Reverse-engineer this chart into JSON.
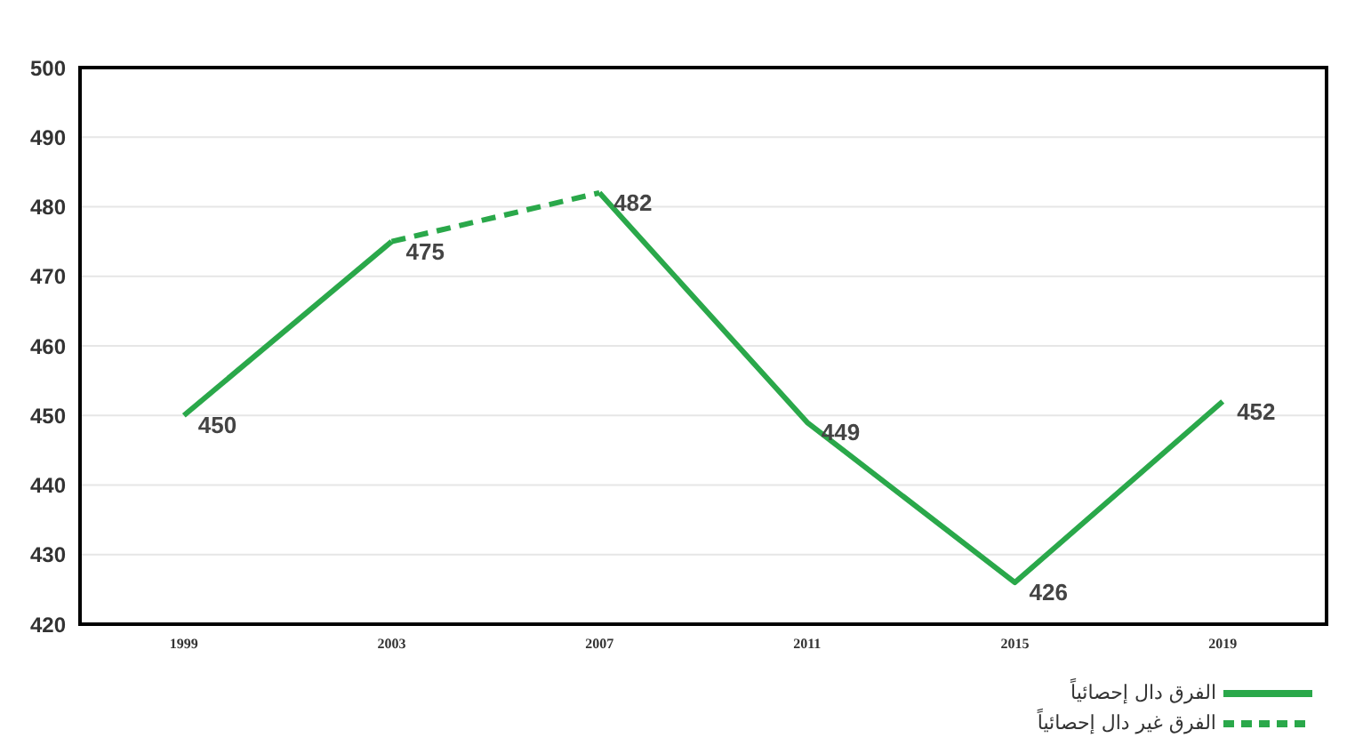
{
  "chart_data": {
    "type": "line",
    "categories": [
      "1999",
      "2003",
      "2007",
      "2011",
      "2015",
      "2019"
    ],
    "series": [
      {
        "name": "الفرق دال إحصائياً",
        "color": "#2aa84a",
        "line_style": "solid",
        "values": [
          450,
          475,
          null,
          null,
          null,
          null
        ],
        "value_labels": [
          "450",
          "475",
          null,
          null,
          null,
          null
        ]
      },
      {
        "name": "الفرق غير دال إحصائياً",
        "color": "#2aa84a",
        "line_style": "dashed",
        "values": [
          null,
          475,
          482,
          null,
          null,
          null
        ],
        "value_labels": [
          null,
          null,
          null,
          null,
          null,
          null
        ]
      },
      {
        "color": "#2aa84a",
        "line_style": "solid",
        "values": [
          null,
          null,
          482,
          449,
          426,
          452
        ],
        "value_labels": [
          null,
          null,
          "482",
          "449",
          "426",
          "452"
        ]
      }
    ],
    "ylim": [
      420,
      500
    ],
    "yticks": [
      420,
      430,
      440,
      450,
      460,
      470,
      480,
      490,
      500
    ],
    "grid": "y",
    "legend": "bottom right"
  }
}
